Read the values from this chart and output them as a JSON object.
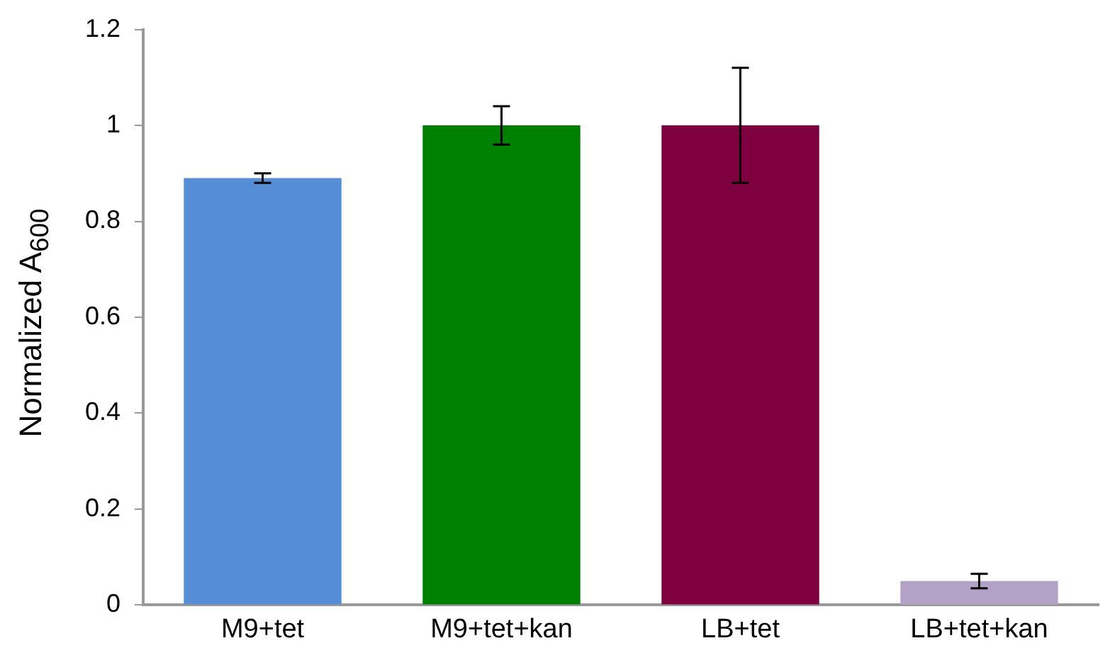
{
  "chart_data": {
    "type": "bar",
    "ylabel": "Normalized A$_{600}$",
    "categories": [
      "M9+tet",
      "M9+tet+kan",
      "LB+tet",
      "LB+tet+kan"
    ],
    "values": [
      0.89,
      1.0,
      1.0,
      0.05
    ],
    "colors": [
      "#558ed5",
      "#008000",
      "#7f003f",
      "#b3a2c7"
    ],
    "errors": [
      0.01,
      0.04,
      0.12,
      0.015
    ],
    "ylim": [
      0,
      1.2
    ],
    "yticks": [
      0,
      0.2,
      0.4,
      0.6,
      0.8,
      1,
      1.2
    ],
    "grid": false,
    "legend": false
  }
}
